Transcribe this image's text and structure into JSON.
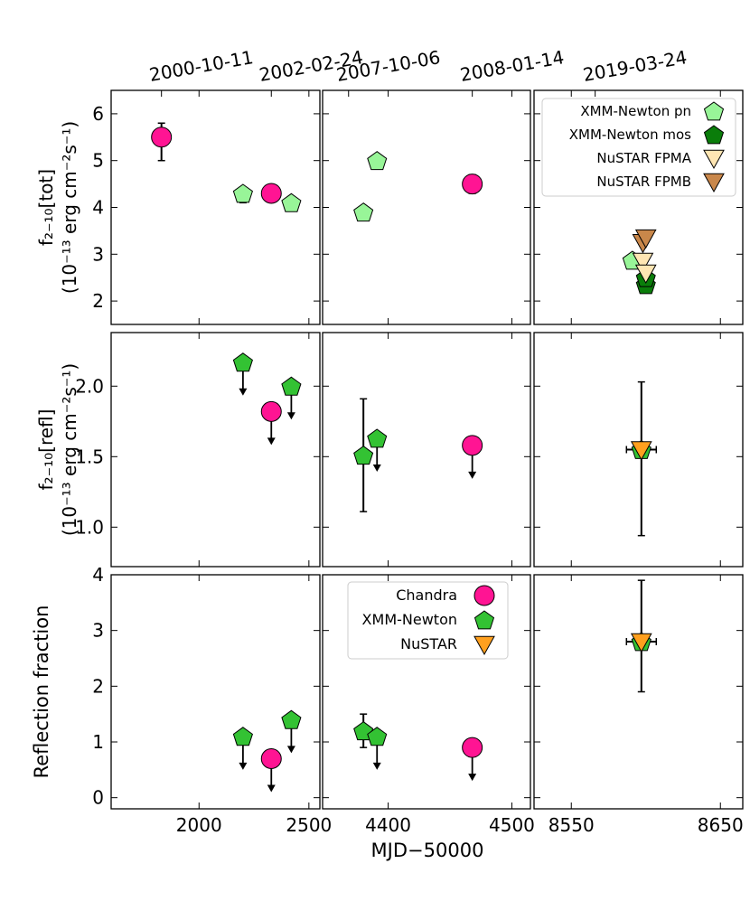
{
  "chart_data": {
    "type": "scatter",
    "top_dates": [
      {
        "label": "2000-10-11",
        "x_mjd": 1829
      },
      {
        "label": "2002-02-24",
        "x_mjd": 2329
      },
      {
        "label": "2007-10-06",
        "x_mjd": 4368
      },
      {
        "label": "2008-01-14",
        "x_mjd": 4468
      },
      {
        "label": "2019-03-24",
        "x_mjd": 8566
      }
    ],
    "xlabel": "MJD−50000",
    "x_panels": [
      {
        "xlim": [
          1600,
          2550
        ],
        "ticks": [
          2000,
          2500
        ]
      },
      {
        "xlim": [
          4347,
          4515
        ],
        "ticks": [
          4400,
          4500
        ]
      },
      {
        "xlim": [
          8525,
          8665
        ],
        "ticks": [
          8550,
          8650
        ]
      }
    ],
    "rows": [
      {
        "ylabel_line1": "f₂₋₁₀[tot]",
        "ylabel_line2": "(10⁻¹³ erg cm⁻²s⁻¹)",
        "ylim": [
          1.5,
          6.5
        ],
        "yticks": [
          2,
          3,
          4,
          5,
          6
        ],
        "tick_labels": [
          "2",
          "3",
          "4",
          "5",
          "6"
        ]
      },
      {
        "ylabel_line1": "f₂₋₁₀[refl]",
        "ylabel_line2": "(10⁻¹³ erg cm⁻²s⁻¹)",
        "ylim": [
          0.72,
          2.38
        ],
        "yticks": [
          1.0,
          1.5,
          2.0
        ],
        "tick_labels": [
          "1.0",
          "1.5",
          "2.0"
        ]
      },
      {
        "ylabel_line1": "Reflection fraction",
        "ylabel_line2": "",
        "ylim": [
          -0.2,
          4.0
        ],
        "yticks": [
          0,
          1,
          2,
          3,
          4
        ],
        "tick_labels": [
          "0",
          "1",
          "2",
          "3",
          "4"
        ]
      }
    ],
    "legend_top": {
      "location": "top-right of top-right panel",
      "entries": [
        {
          "label": "XMM-Newton pn",
          "marker": "pentagon",
          "color": "#98f598"
        },
        {
          "label": "XMM-Newton mos",
          "marker": "pentagon",
          "color": "#0a7d0a"
        },
        {
          "label": "NuSTAR FPMA",
          "marker": "triangle-down",
          "color": "#ffe6b3"
        },
        {
          "label": "NuSTAR FPMB",
          "marker": "triangle-down",
          "color": "#c9874a"
        }
      ]
    },
    "legend_bottom": {
      "location": "upper area of bottom-middle panel",
      "entries": [
        {
          "label": "Chandra",
          "marker": "circle",
          "color": "#ff1493"
        },
        {
          "label": "XMM-Newton",
          "marker": "pentagon",
          "color": "#33c233"
        },
        {
          "label": "NuSTAR",
          "marker": "triangle-down",
          "color": "#ffa01e"
        }
      ]
    },
    "points": [
      {
        "row": 0,
        "x": 1829,
        "y": 5.5,
        "marker": "circle",
        "color": "#ff1493",
        "yerr": [
          0.5,
          0.3
        ]
      },
      {
        "row": 0,
        "x": 2200,
        "y": 4.3,
        "marker": "pentagon",
        "color": "#98f598",
        "yerr": [
          0.2,
          0
        ]
      },
      {
        "row": 0,
        "x": 2329,
        "y": 4.3,
        "marker": "circle",
        "color": "#ff1493"
      },
      {
        "row": 0,
        "x": 2420,
        "y": 4.1,
        "marker": "pentagon",
        "color": "#98f598"
      },
      {
        "row": 0,
        "x": 4380,
        "y": 3.9,
        "marker": "pentagon",
        "color": "#98f598"
      },
      {
        "row": 0,
        "x": 4391,
        "y": 5.0,
        "marker": "pentagon",
        "color": "#98f598"
      },
      {
        "row": 0,
        "x": 4468,
        "y": 4.5,
        "marker": "circle",
        "color": "#ff1493",
        "yerr": [
          0.2,
          0.2
        ]
      },
      {
        "row": 0,
        "x": 8591,
        "y": 2.87,
        "marker": "pentagon",
        "color": "#98f598"
      },
      {
        "row": 0,
        "x": 8600,
        "y": 2.35,
        "marker": "pentagon",
        "color": "#0a7d0a"
      },
      {
        "row": 0,
        "x": 8600,
        "y": 2.5,
        "marker": "pentagon",
        "color": "#0a7d0a"
      },
      {
        "row": 0,
        "x": 8598,
        "y": 2.85,
        "marker": "triangle-down",
        "color": "#ffe6b3"
      },
      {
        "row": 0,
        "x": 8600,
        "y": 2.6,
        "marker": "triangle-down",
        "color": "#ffe6b3"
      },
      {
        "row": 0,
        "x": 8598,
        "y": 3.25,
        "marker": "triangle-down",
        "color": "#c9874a"
      },
      {
        "row": 0,
        "x": 8600,
        "y": 3.35,
        "marker": "triangle-down",
        "color": "#c9874a"
      },
      {
        "row": 1,
        "x": 2200,
        "y": 2.17,
        "marker": "pentagon",
        "color": "#33c233",
        "upper_limit": true
      },
      {
        "row": 1,
        "x": 2329,
        "y": 1.82,
        "marker": "circle",
        "color": "#ff1493",
        "upper_limit": true
      },
      {
        "row": 1,
        "x": 2420,
        "y": 2.0,
        "marker": "pentagon",
        "color": "#33c233",
        "upper_limit": true
      },
      {
        "row": 1,
        "x": 4380,
        "y": 1.51,
        "marker": "pentagon",
        "color": "#33c233",
        "yerr": [
          0.4,
          0.4
        ]
      },
      {
        "row": 1,
        "x": 4391,
        "y": 1.63,
        "marker": "pentagon",
        "color": "#33c233",
        "upper_limit": true
      },
      {
        "row": 1,
        "x": 4468,
        "y": 1.58,
        "marker": "circle",
        "color": "#ff1493",
        "upper_limit": true
      },
      {
        "row": 1,
        "x": 8597,
        "y": 1.55,
        "marker": "pentagon",
        "color": "#33c233",
        "xerr": [
          10,
          10
        ],
        "yerr": [
          0.61,
          0.48
        ]
      },
      {
        "row": 1,
        "x": 8597,
        "y": 1.55,
        "marker": "triangle-down",
        "color": "#ffa01e"
      },
      {
        "row": 2,
        "x": 2200,
        "y": 1.1,
        "marker": "pentagon",
        "color": "#33c233",
        "upper_limit": true
      },
      {
        "row": 2,
        "x": 2329,
        "y": 0.7,
        "marker": "circle",
        "color": "#ff1493",
        "upper_limit": true
      },
      {
        "row": 2,
        "x": 2420,
        "y": 1.4,
        "marker": "pentagon",
        "color": "#33c233",
        "upper_limit": true
      },
      {
        "row": 2,
        "x": 4380,
        "y": 1.2,
        "marker": "pentagon",
        "color": "#33c233",
        "yerr": [
          0.3,
          0.3
        ]
      },
      {
        "row": 2,
        "x": 4391,
        "y": 1.1,
        "marker": "pentagon",
        "color": "#33c233",
        "upper_limit": true
      },
      {
        "row": 2,
        "x": 4468,
        "y": 0.9,
        "marker": "circle",
        "color": "#ff1493",
        "upper_limit": true
      },
      {
        "row": 2,
        "x": 8597,
        "y": 2.8,
        "marker": "pentagon",
        "color": "#33c233",
        "xerr": [
          10,
          10
        ],
        "yerr": [
          0.9,
          1.1
        ]
      },
      {
        "row": 2,
        "x": 8597,
        "y": 2.8,
        "marker": "triangle-down",
        "color": "#ffa01e"
      }
    ]
  }
}
